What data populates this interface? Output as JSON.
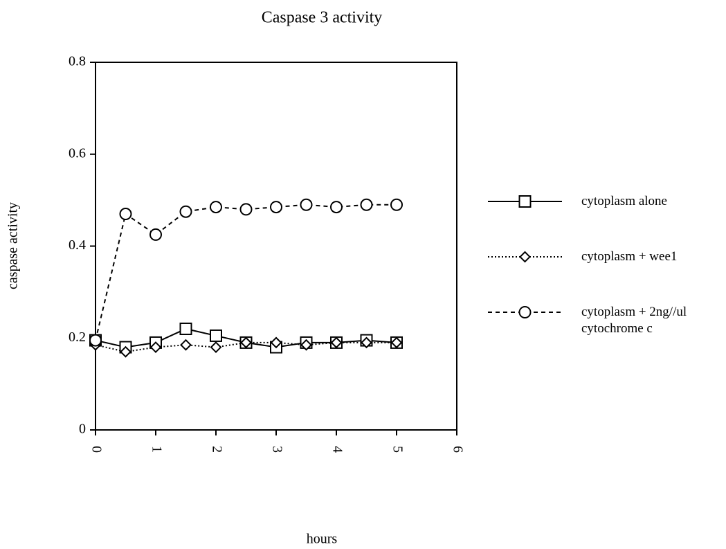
{
  "chart_data": {
    "type": "line",
    "title": "Caspase 3 activity",
    "xlabel": "hours",
    "ylabel": "caspase  activity",
    "x": [
      0,
      0.5,
      1,
      1.5,
      2,
      2.5,
      3,
      3.5,
      4,
      4.5,
      5
    ],
    "series": [
      {
        "name": "cytoplasm  alone",
        "color": "#000000",
        "dash": "solid",
        "marker": "square",
        "values": [
          0.195,
          0.18,
          0.19,
          0.22,
          0.205,
          0.19,
          0.18,
          0.19,
          0.19,
          0.195,
          0.19
        ]
      },
      {
        "name": "cytoplasm + wee1",
        "color": "#000000",
        "dash": "dotted",
        "marker": "diamond",
        "values": [
          0.185,
          0.17,
          0.18,
          0.185,
          0.18,
          0.19,
          0.19,
          0.185,
          0.19,
          0.19,
          0.19
        ]
      },
      {
        "name": "cytoplasm + 2ng//ul cytochrome c",
        "color": "#000000",
        "dash": "dashed",
        "marker": "circle",
        "values": [
          0.195,
          0.47,
          0.425,
          0.475,
          0.485,
          0.48,
          0.485,
          0.49,
          0.485,
          0.49,
          0.49
        ]
      }
    ],
    "xlim": [
      0,
      6
    ],
    "xticks": [
      0,
      1,
      2,
      3,
      4,
      5,
      6
    ],
    "ylim": [
      0,
      0.8
    ],
    "yticks": [
      0,
      0.2,
      0.4,
      0.6,
      0.8
    ],
    "legend": "right"
  }
}
